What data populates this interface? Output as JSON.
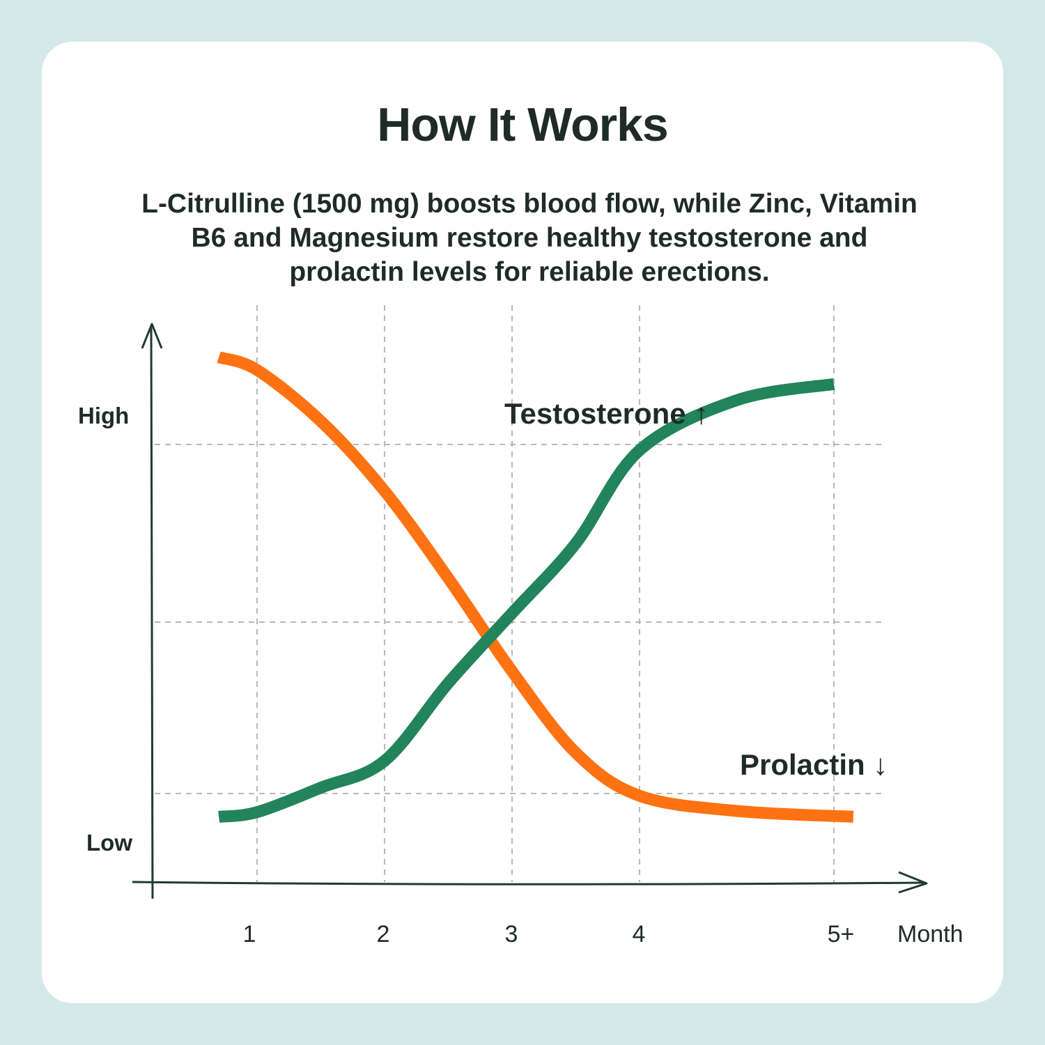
{
  "title": "How It Works",
  "subtitle": "L-Citrulline (1500 mg) boosts blood flow, while Zinc, Vitamin B6 and Magnesium restore healthy testosterone and prolactin levels for reliable erections.",
  "colors": {
    "background": "#d6e9ea",
    "card": "#ffffff",
    "text": "#1f2b27",
    "axis": "#1f3a33",
    "grid": "#b8b8b8",
    "testosterone": "#22845a",
    "prolactin": "#ff7212"
  },
  "chart_data": {
    "type": "line",
    "xlabel": "Month",
    "x_ticks": [
      "1",
      "2",
      "3",
      "4",
      "5+"
    ],
    "y_ticks": [
      "Low",
      "High"
    ],
    "grid": true,
    "series": [
      {
        "name": "Testosterone ↑",
        "color": "#22845a",
        "x": [
          0.7,
          1.0,
          1.5,
          2.0,
          2.5,
          3.0,
          3.5,
          4.0,
          4.5,
          5.0
        ],
        "y": [
          -0.2,
          -0.16,
          0.05,
          0.28,
          0.95,
          1.55,
          2.15,
          2.95,
          3.38,
          3.52
        ]
      },
      {
        "name": "Prolactin ↓",
        "color": "#ff7212",
        "x": [
          0.7,
          1.0,
          1.5,
          2.0,
          2.5,
          3.0,
          3.5,
          4.0,
          4.5,
          5.1
        ],
        "y": [
          3.75,
          3.64,
          3.2,
          2.6,
          1.85,
          1.05,
          0.35,
          -0.02,
          -0.15,
          -0.2
        ]
      }
    ]
  }
}
